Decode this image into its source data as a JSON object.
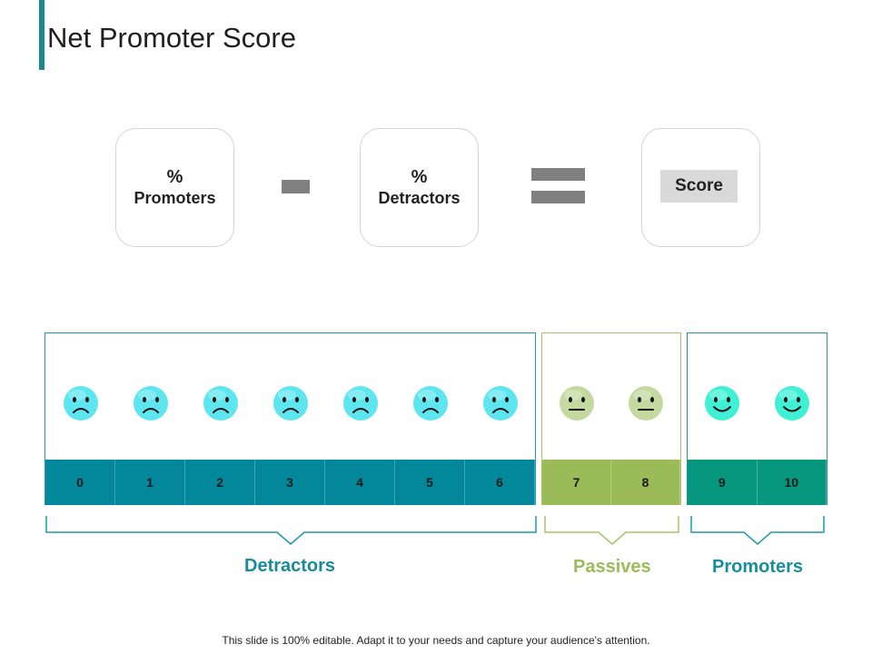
{
  "title": "Net Promoter Score",
  "formula": {
    "card_promoters": {
      "pct": "%",
      "label": "Promoters"
    },
    "card_detractors": {
      "pct": "%",
      "label": "Detractors"
    },
    "score_label": "Score"
  },
  "scale": {
    "detractors": {
      "values": [
        "0",
        "1",
        "2",
        "3",
        "4",
        "5",
        "6"
      ],
      "face": "sad",
      "color": "#02889a",
      "face_color": "#5ee6f0",
      "border_color": "#1a9bb0",
      "label": "Detractors",
      "label_color": "#1a8a9a"
    },
    "passives": {
      "values": [
        "7",
        "8"
      ],
      "face": "neutral",
      "color": "#9bbb59",
      "face_color": "#c3d9a0",
      "border_color": "#a6c36a",
      "label": "Passives",
      "label_color": "#9bbb59"
    },
    "promoters": {
      "values": [
        "9",
        "10"
      ],
      "face": "happy",
      "color": "#07977f",
      "face_color": "#3ff0d4",
      "border_color": "#2a8fa6",
      "label": "Promoters",
      "label_color": "#168ea0"
    }
  },
  "footer": "This slide is 100% editable. Adapt it to your needs and capture your audience's attention."
}
